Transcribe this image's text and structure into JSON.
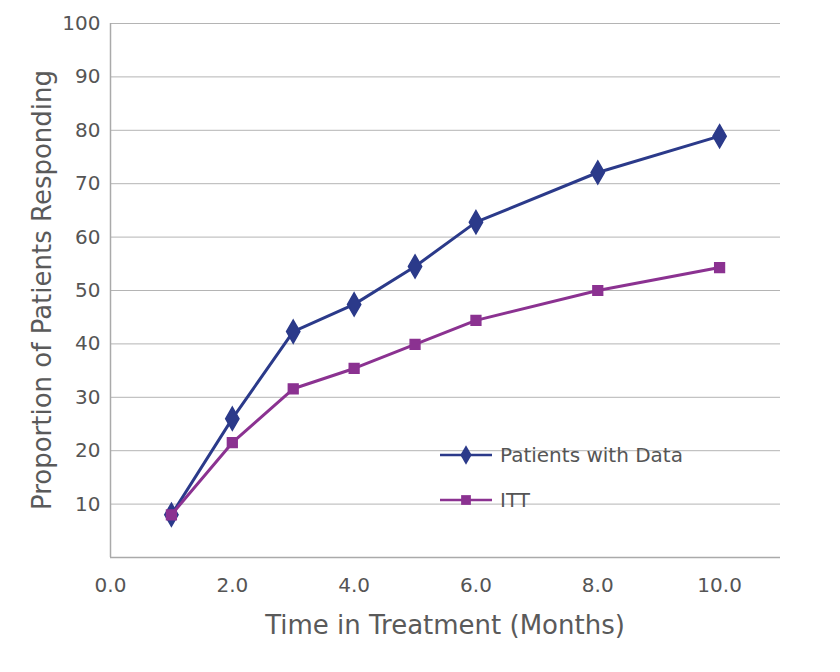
{
  "chart_data": {
    "type": "line",
    "x_label": "Time in Treatment (Months)",
    "y_label": "Proportion of Patients Responding",
    "x": [
      1,
      2,
      3,
      4,
      5,
      6,
      8,
      10
    ],
    "series": [
      {
        "name": "Patients with Data",
        "color": "#2b3a8a",
        "marker": "diamond",
        "line_style": "solid",
        "values": [
          8.0,
          26.0,
          42.3,
          47.4,
          54.5,
          62.8,
          72.1,
          78.9
        ]
      },
      {
        "name": "ITT",
        "color": "#8b3291",
        "marker": "square",
        "line_style": "solid",
        "values": [
          8.0,
          21.5,
          31.6,
          35.4,
          39.9,
          44.4,
          50.0,
          54.3
        ]
      }
    ],
    "xlim": [
      0,
      11
    ],
    "xticks": [
      {
        "value": 0,
        "label": "0.0"
      },
      {
        "value": 2,
        "label": "2.0"
      },
      {
        "value": 4,
        "label": "4.0"
      },
      {
        "value": 6,
        "label": "6.0"
      },
      {
        "value": 8,
        "label": "8.0"
      },
      {
        "value": 10,
        "label": "10.0"
      }
    ],
    "ylim": [
      0,
      100
    ],
    "yticks": [
      10,
      20,
      30,
      40,
      50,
      60,
      70,
      80,
      90,
      100
    ],
    "grid": true,
    "legend": "lower right"
  }
}
